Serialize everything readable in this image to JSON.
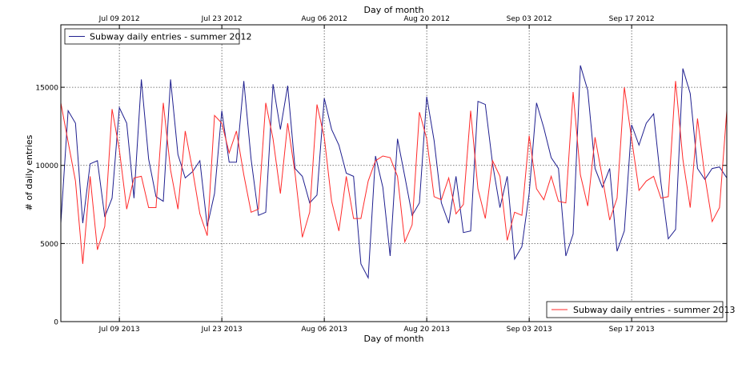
{
  "chart_data": {
    "type": "line",
    "ylabel": "# of daily entries",
    "top_xlabel": "Day of month",
    "bottom_xlabel": "Day of month",
    "ylim": [
      0,
      19000
    ],
    "yticks": [
      0,
      5000,
      10000,
      15000
    ],
    "grid": true,
    "x_top": {
      "start": "2012-07-01",
      "end": "2012-09-30",
      "ticks": [
        "Jul 09 2012",
        "Jul 23 2012",
        "Aug 06 2012",
        "Aug 20 2012",
        "Sep 03 2012",
        "Sep 17 2012"
      ]
    },
    "x_bottom": {
      "start": "2013-07-01",
      "end": "2013-09-30",
      "ticks": [
        "Jul 09 2013",
        "Jul 23 2013",
        "Aug 06 2013",
        "Aug 20 2013",
        "Sep 03 2013",
        "Sep 17 2013"
      ]
    },
    "series": [
      {
        "name": "Subway daily entries - summer 2012",
        "axis": "top",
        "color": "#1f1f8f",
        "legend_position": "top-left",
        "values": [
          6300,
          13500,
          12700,
          6300,
          10100,
          10300,
          6700,
          7900,
          13700,
          12700,
          7900,
          15500,
          10400,
          8000,
          7700,
          15500,
          10700,
          9200,
          9600,
          10300,
          6100,
          8200,
          13500,
          10200,
          10200,
          15400,
          10400,
          6800,
          7000,
          15200,
          12300,
          15100,
          9800,
          9300,
          7600,
          8100,
          14300,
          12300,
          11300,
          9500,
          9300,
          3700,
          2800,
          10600,
          8600,
          4200,
          11700,
          9300,
          6800,
          7600,
          14400,
          11600,
          7600,
          6300,
          9300,
          5700,
          5800,
          14100,
          13900,
          10100,
          7300,
          9300,
          4000,
          4800,
          8200,
          14000,
          12400,
          10500,
          9800,
          4200,
          5600,
          16400,
          14800,
          9800,
          8600,
          9800,
          4500,
          5800,
          12600,
          11300,
          12700,
          13300,
          8900,
          5300,
          5900,
          16200,
          14600,
          9800,
          9100,
          9800,
          9900,
          9200
        ]
      },
      {
        "name": "Subway daily entries - summer 2013",
        "axis": "bottom",
        "color": "#ff2a2a",
        "legend_position": "bottom-right",
        "values": [
          14000,
          11500,
          9000,
          3700,
          9300,
          4600,
          6100,
          13600,
          11000,
          7200,
          9200,
          9300,
          7300,
          7300,
          14000,
          9700,
          7200,
          12200,
          9700,
          6900,
          5500,
          13200,
          12700,
          10800,
          12200,
          9400,
          7000,
          7200,
          14000,
          11700,
          8200,
          12700,
          9500,
          5400,
          7000,
          13900,
          11800,
          7700,
          5800,
          9300,
          6600,
          6600,
          9000,
          10300,
          10600,
          10500,
          9300,
          5100,
          6200,
          13400,
          11700,
          8000,
          7800,
          9200,
          6900,
          7500,
          13500,
          8500,
          6600,
          10300,
          9300,
          5200,
          7000,
          6800,
          11900,
          8500,
          7800,
          9300,
          7700,
          7600,
          14700,
          9400,
          7400,
          11800,
          9200,
          6500,
          7900,
          15000,
          11700,
          8400,
          9000,
          9300,
          7900,
          8000,
          15400,
          10400,
          7300,
          13000,
          9300,
          6400,
          7300,
          13500
        ]
      }
    ]
  }
}
